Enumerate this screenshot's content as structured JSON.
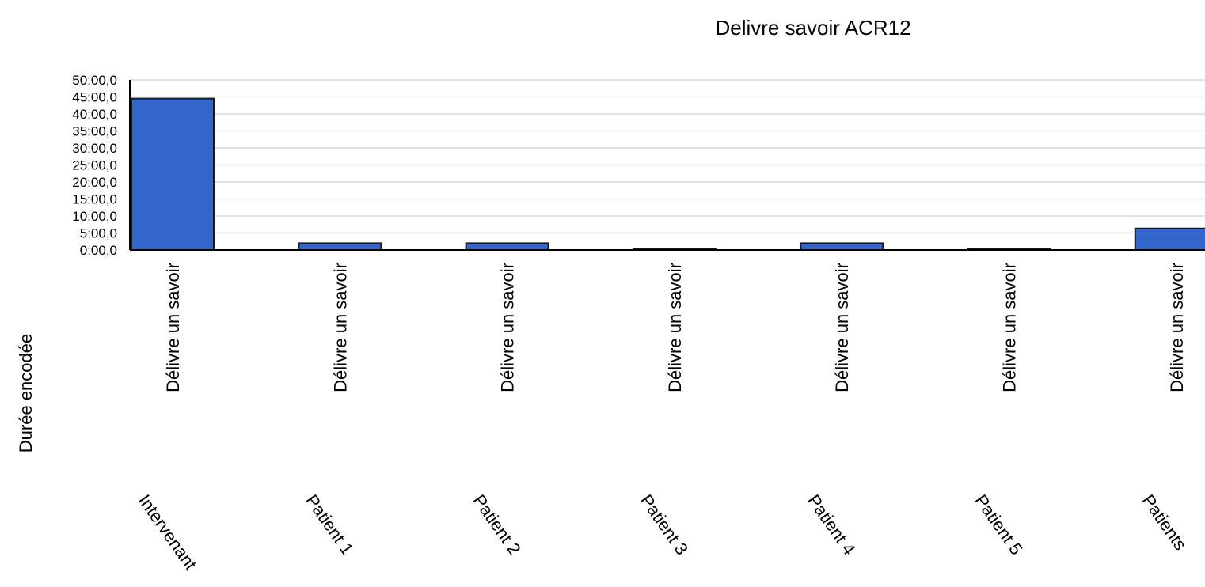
{
  "chart_data": {
    "type": "bar",
    "title": "Delivre savoir ACR12",
    "ylabel": "Durée encodée",
    "xlabel": "",
    "series_label": "Délivre un savoir",
    "categories": [
      "Intervenant",
      "Patient 1",
      "Patient 2",
      "Patient 3",
      "Patient 4",
      "Patient 5",
      "Patients"
    ],
    "values": [
      2670,
      120,
      120,
      25,
      120,
      25,
      380
    ],
    "ylim": [
      0,
      3000
    ],
    "yticks": [
      0,
      300,
      600,
      900,
      1200,
      1500,
      1800,
      2100,
      2400,
      2700,
      3000
    ],
    "ytick_labels": [
      "0:00,0",
      "5:00,0",
      "10:00,0",
      "15:00,0",
      "20:00,0",
      "25:00,0",
      "30:00,0",
      "35:00,0",
      "40:00,0",
      "45:00,0",
      "50:00,0"
    ],
    "grid": true,
    "legend": "none",
    "colors": {
      "bar": "#3366cc",
      "bar_edge": "#1a1a1a",
      "grid": "#d9d9d9",
      "axis": "#000000"
    }
  }
}
